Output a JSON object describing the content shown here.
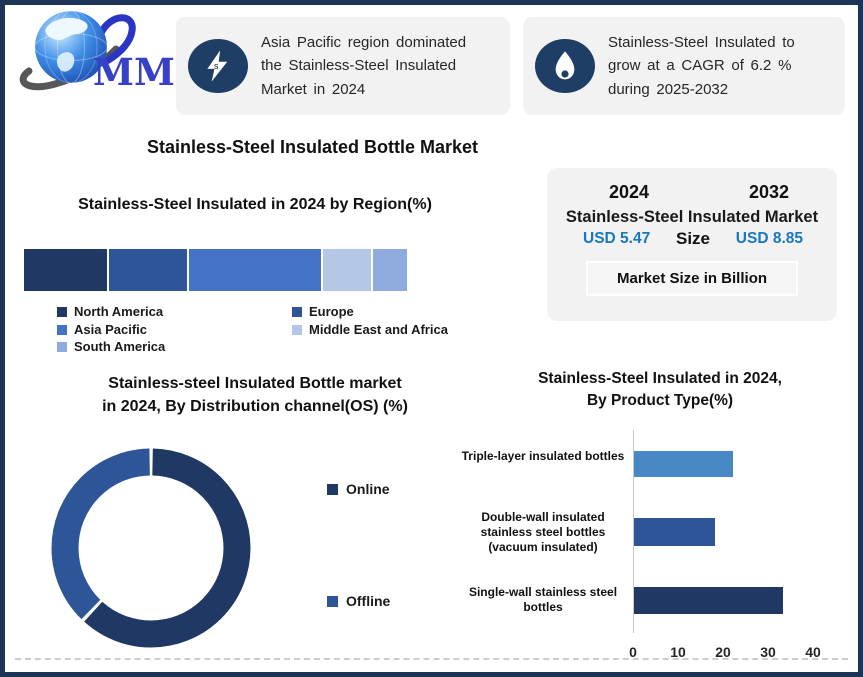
{
  "page": {
    "border_color": "#1e3457",
    "background": "#ffffff"
  },
  "logo": {
    "brand": "MMR"
  },
  "callouts": [
    {
      "icon": "lightning-icon",
      "text": "Asia Pacific region dominated\nthe Stainless-Steel Insulated\nMarket in 2024"
    },
    {
      "icon": "flame-icon",
      "text": "Stainless-Steel Insulated to\ngrow at a CAGR of 6.2 %\nduring 2025-2032"
    }
  ],
  "main_title": "Stainless-Steel Insulated Bottle Market",
  "market_size": {
    "year_left": "2024",
    "year_right": "2032",
    "title_line": "Stainless-Steel Insulated Market",
    "size_word": "Size",
    "value_left": "USD 5.47",
    "value_right": "USD 8.85",
    "value_color": "#1878BE",
    "note": "Market Size in Billion"
  },
  "chart_data": [
    {
      "type": "bar",
      "subtype": "stacked-horizontal-single-bar",
      "title": "Stainless-Steel Insulated in 2024 by Region(%)",
      "categories": [
        "North America",
        "Europe",
        "Asia Pacific",
        "Middle East and Africa",
        "South America"
      ],
      "values": [
        22,
        21,
        35,
        13,
        9
      ],
      "colors": [
        "#1F3864",
        "#2E5597",
        "#4472C4",
        "#B4C7E7",
        "#8FAADC"
      ],
      "unit": "%",
      "legend_position": "bottom",
      "axes": "none"
    },
    {
      "type": "pie",
      "subtype": "donut",
      "title": "Stainless-steel Insulated Bottle market\nin 2024, By Distribution channel(OS) (%)",
      "categories": [
        "Online",
        "Offline"
      ],
      "values": [
        62,
        38
      ],
      "colors": [
        "#1F3864",
        "#2E5597"
      ],
      "unit": "%",
      "legend_position": "right"
    },
    {
      "type": "bar",
      "subtype": "horizontal",
      "title": "Stainless-Steel Insulated in 2024,\nBy Product Type(%)",
      "categories": [
        "Triple-layer insulated bottles",
        "Double-wall insulated stainless steel bottles (vacuum insulated)",
        "Single-wall stainless steel bottles"
      ],
      "values": [
        22,
        18,
        33
      ],
      "colors": [
        "#4687C4",
        "#2E5597",
        "#1F3864"
      ],
      "unit": "%",
      "xlim": [
        0,
        40
      ],
      "xticks": [
        0,
        10,
        20,
        30,
        40
      ],
      "grid": false
    }
  ]
}
